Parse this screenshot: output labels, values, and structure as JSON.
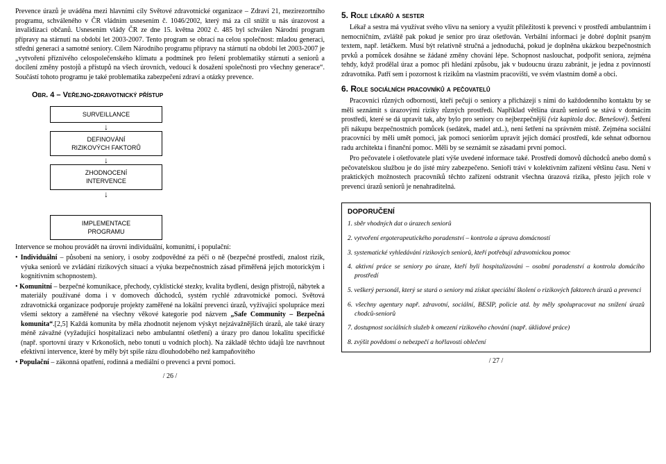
{
  "left": {
    "intro": "Prevence úrazů je uváděna mezi hlavními cíly Světové zdravotnické organizace – Zdraví 21, mezirezortního programu, schváleného v ČR vládním usnesením č. 1046/2002, který má za cíl snížit u nás úrazovost a invalidizaci občanů. Usnesením vlády ČR ze dne 15. května 2002 č. 485 byl schválen Národní program přípravy na stárnutí na období let 2003-2007. Tento program se obrací na celou společnost: mladou generaci, střední generaci a samotné seniory. Cílem Národního programu přípravy na stárnutí na období let 2003-2007 je „vytvoření příznivého celospolečenského klimatu a podmínek pro řešení problematiky stárnutí a seniorů a docílení změny postojů a přístupů na všech úrovních, vedoucí k dosažení společnosti pro všechny generace“. Součástí tohoto programu je také problematika zabezpečení zdraví a otázky prevence.",
    "obrTitle": "Obr. 4 – Veřejno-zdravotnický přístup",
    "flow": {
      "b1": "SURVEILLANCE",
      "b2a": "DEFINOVÁNÍ",
      "b2b": "RIZIKOVÝCH FAKTORŮ",
      "b3a": "ZHODNOCENÍ",
      "b3b": "INTERVENCE",
      "b4a": "IMPLEMENTACE",
      "b4b": "PROGRAMU"
    },
    "interIntro": "Intervence se mohou provádět na úrovni individuální, komunitní, i populační:",
    "bullets": [
      "<b>Individuální</b> – působení na seniory, i osoby zodpovědné za péči o ně (bezpečné prostředí, znalost rizik, výuka seniorů ve zvládání rizikových situací a výuka bezpečnostních zásad přiměřená jejich motorickým i kognitivním schopnostem).",
      "<b>Komunitní</b> – bezpečné komunikace, přechody, cyklistické stezky, kvalita bydlení, design přístrojů, nábytek a materiály používané doma i v domovech důchodců, systém rychlé zdravotnické pomoci. Světová zdravotnická organizace podporuje projekty zaměřené na lokální prevenci úrazů, vyžívající spolupráce mezi všemi sektory a zaměřené na všechny věkové kategorie pod názvem <b>„Safe Community – Bezpečná komunita“</b>.[2,5] Každá komunita by měla zhodnotit nejenom výskyt nejzávažnějších úrazů, ale také úrazy méně závažné (vyžadující hospitalizaci nebo ambulantní ošetření) a úrazy pro danou lokalitu specifické (např. sportovní úrazy v Krkonoších, nebo tonutí u vodních ploch). Na základě těchto údajů lze navrhnout efektivní intervence, které by měly být spíše rázu dlouhodobého než kampaňovitého",
      "<b>Populační</b> – zákonná opatření, rodinná a mediální o prevenci a první pomoci."
    ],
    "pgnum": "/ 26 /"
  },
  "right": {
    "h5": "5. Role lékařů a sester",
    "p5": "Lékař a sestra má využívat svého vlivu na seniory a využít příležitosti k prevenci v prostředí ambulantním i nemocničním, zvláště pak pokud je senior pro úraz ošetřován. Verbální informaci je dobré doplnit psaným textem, např. letáčkem. Musí být relativně stručná a jednoduchá, pokud je doplněna ukázkou bezpečnostních prvků a pomůcek dosáhne se žádané změny chování lépe. Schopnost naslouchat, podpořit seniora, zejména tehdy, když prodělal úraz a pomoc při hledání způsobu, jak v budoucnu úrazu zabránit, je jedna z povinností zdravotníka. Patří sem i pozornost k rizikům na vlastním pracovišti, ve svém vlastním domě a obci.",
    "h6": "6. Role sociálních pracovníků a pečovatelů",
    "p6a": "Pracovníci různých odborností, kteří pečují o seniory a přicházejí s nimi do každodenního kontaktu by se měli seznámit s úrazovými riziky různých prostředí. Například většina úrazů seniorů se stává v domácím prostředí, které se dá upravit tak, aby bylo pro seniory co nejbezpečnější <i>(viz kapitola doc. Benešové)</i>. Šetření při nákupu bezpečnostních pomůcek (sedátek, madel atd..), není šetření na správném místě. Zejména sociální pracovníci by měli umět pomoci, jak pomoci seniorům upravit jejich domácí prostředí, kde sehnat odbornou radu architekta i finanční pomoc. Měli by se seznámit se zásadami první pomoci.",
    "p6b": "Pro pečovatele i ošetřovatele platí výše uvedené informace také. Prostředí domovů důchodců anebo domů s pečovatelskou službou je do jisté míry zabezpečeno. Senioři tráví v kolektivním zařízení většinu času. Není v praktických možnostech pracovníků těchto zařízení odstranit všechna úrazová rizika, přesto jejich role v prevenci úrazů seniorů je nenahraditelná.",
    "dopoTitle": "DOPORUČENÍ",
    "dopo": [
      "1. sběr vhodných dat o úrazech seniorů",
      "2. vytvoření ergoterapeutického poradenství – kontrola a úprava domácností",
      "3. systematické vyhledávání rizikových seniorů, kteří potřebují zdravotnickou pomoc",
      "4. aktivní práce se seniory po úraze, kteří byli hospitalizováni – osobní poradenství a kontrola domácího prostředí",
      "5. veškerý personál, který se stará o seniory má získat speciální školení o rizikových faktorech úrazů a prevenci",
      "6. všechny agentury např. zdravotní, sociální, BESIP, policie atd. by měly spolupracovat na snížení úrazů chodců-seniorů",
      "7. dostupnost sociálních služeb k omezení rizikového chování (např. úklidové práce)",
      "8. zvýšit povědomí o nebezpečí a hořlavosti oblečení"
    ],
    "pgnum": "/ 27 /"
  }
}
